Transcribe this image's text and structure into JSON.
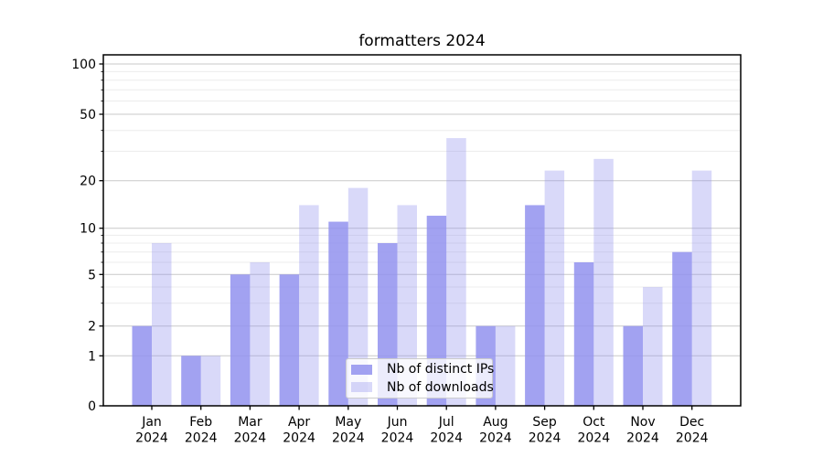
{
  "chart_data": {
    "type": "bar",
    "title": "formatters 2024",
    "x": [
      "Jan",
      "Feb",
      "Mar",
      "Apr",
      "May",
      "Jun",
      "Jul",
      "Aug",
      "Sep",
      "Oct",
      "Nov",
      "Dec"
    ],
    "x_year_label": "2024",
    "series": [
      {
        "name": "Nb of distinct IPs",
        "color": "#9292ee",
        "opacity": 0.85,
        "values": [
          2,
          1,
          5,
          5,
          11,
          8,
          12,
          2,
          14,
          6,
          2,
          7
        ]
      },
      {
        "name": "Nb of downloads",
        "color": "#9292ee",
        "opacity": 0.35,
        "values": [
          8,
          1,
          6,
          14,
          18,
          14,
          36,
          2,
          23,
          27,
          4,
          23
        ]
      }
    ],
    "y_axis": {
      "ticks": [
        0,
        1,
        2,
        5,
        10,
        20,
        50,
        100
      ],
      "minor_gridlines": [
        3,
        4,
        6,
        7,
        8,
        9,
        30,
        40,
        60,
        70,
        80,
        90
      ],
      "scale": "log above 1, linear 0-1",
      "ylim": [
        0,
        113
      ]
    },
    "grid": true,
    "legend_position": "lower center inside plot",
    "colors": {
      "bar_base": "#9292ee",
      "major_grid": "#c9c9c9",
      "minor_grid": "#ececec",
      "axis": "#000000",
      "legend_border": "#cccccc",
      "text": "#000000"
    }
  }
}
